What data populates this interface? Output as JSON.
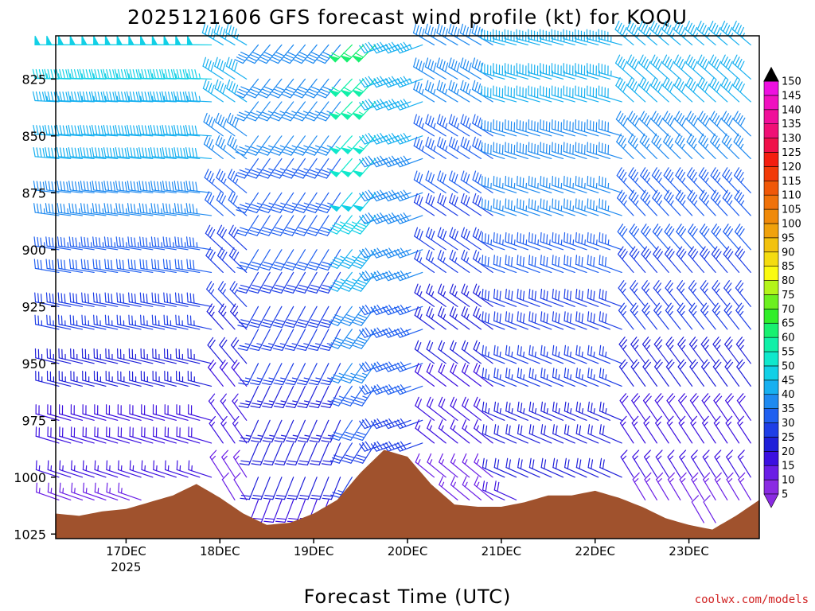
{
  "chart_data": {
    "type": "wind_barb_time_height",
    "title": "2025121606 GFS forecast wind profile (kt) for KOQU",
    "xlabel": "Forecast Time (UTC)",
    "ylabel": "",
    "credit": "coolwx.com/models",
    "y_axis": {
      "units": "hPa",
      "inverted": true,
      "range": [
        806,
        1027
      ],
      "ticks": [
        825,
        850,
        875,
        900,
        925,
        950,
        975,
        1000,
        1025
      ]
    },
    "x_axis": {
      "units": "hours since 2025-12-16 06Z",
      "range": [
        0,
        180
      ],
      "ticks": [
        {
          "hour": 18,
          "label": "17DEC",
          "sublabel": "2025"
        },
        {
          "hour": 42,
          "label": "18DEC"
        },
        {
          "hour": 66,
          "label": "19DEC"
        },
        {
          "hour": 90,
          "label": "20DEC"
        },
        {
          "hour": 114,
          "label": "21DEC"
        },
        {
          "hour": 138,
          "label": "22DEC"
        },
        {
          "hour": 162,
          "label": "23DEC"
        }
      ]
    },
    "colorbar": {
      "label_units": "kt",
      "levels": [
        5,
        10,
        15,
        20,
        25,
        30,
        35,
        40,
        45,
        50,
        55,
        60,
        65,
        70,
        75,
        80,
        85,
        90,
        95,
        100,
        105,
        110,
        115,
        120,
        125,
        130,
        135,
        140,
        145,
        150
      ],
      "colors": [
        "#8a2be2",
        "#6a1ee6",
        "#3c10e0",
        "#1f1fd9",
        "#1e3ee6",
        "#2060f0",
        "#1f8af0",
        "#17b0f0",
        "#12d0e6",
        "#10e8cc",
        "#10f0a8",
        "#18f070",
        "#30ee2a",
        "#6cf020",
        "#b4f41a",
        "#fafa10",
        "#f4dc10",
        "#f2c20e",
        "#f0a20c",
        "#f08a0a",
        "#f0720a",
        "#f05808",
        "#f23a08",
        "#f41e10",
        "#f0104a",
        "#f01076",
        "#f0109a",
        "#f010c0",
        "#ee10e0",
        "#000000"
      ]
    },
    "pressure_levels": [
      810,
      825,
      835,
      850,
      860,
      875,
      885,
      900,
      910,
      925,
      935,
      950,
      960,
      975,
      985,
      1000,
      1010,
      1020
    ],
    "barb_times": [
      0,
      3,
      6,
      9,
      12,
      15,
      18,
      21,
      24,
      27,
      30,
      33,
      36,
      39,
      42,
      45,
      48,
      51,
      54,
      57,
      60,
      63,
      66,
      69,
      72,
      75,
      78,
      81,
      84,
      87,
      90,
      93,
      96,
      99,
      102,
      105,
      108,
      111,
      114,
      117,
      120,
      123,
      126,
      129,
      132,
      135,
      138,
      141,
      144,
      147,
      150,
      153,
      156,
      159,
      162,
      165,
      168,
      171,
      174,
      177
    ],
    "wind_regimes": [
      {
        "hours": [
          0,
          40
        ],
        "direction_deg_sfc": 290,
        "direction_deg_top": 270,
        "speed_kt_sfc": 12,
        "speed_kt_top": 50
      },
      {
        "hours": [
          40,
          50
        ],
        "direction_deg_sfc": 330,
        "direction_deg_top": 300,
        "speed_kt_sfc": 10,
        "speed_kt_top": 45
      },
      {
        "hours": [
          50,
          73
        ],
        "direction_deg_sfc": 200,
        "direction_deg_top": 220,
        "speed_kt_sfc": 18,
        "speed_kt_top": 40
      },
      {
        "hours": [
          73,
          82
        ],
        "direction_deg_sfc": 210,
        "direction_deg_top": 225,
        "speed_kt_sfc": 22,
        "speed_kt_top": 62
      },
      {
        "hours": [
          82,
          96
        ],
        "direction_deg_sfc": 250,
        "direction_deg_top": 250,
        "speed_kt_sfc": 25,
        "speed_kt_top": 45
      },
      {
        "hours": [
          96,
          112
        ],
        "direction_deg_sfc": 310,
        "direction_deg_top": 300,
        "speed_kt_sfc": 12,
        "speed_kt_top": 40
      },
      {
        "hours": [
          112,
          146
        ],
        "direction_deg_sfc": 295,
        "direction_deg_top": 285,
        "speed_kt_sfc": 18,
        "speed_kt_top": 45
      },
      {
        "hours": [
          146,
          180
        ],
        "direction_deg_sfc": 330,
        "direction_deg_top": 310,
        "speed_kt_sfc": 12,
        "speed_kt_top": 45
      }
    ],
    "surface_pressure": {
      "hours": [
        0,
        6,
        12,
        18,
        24,
        30,
        36,
        42,
        48,
        54,
        60,
        66,
        72,
        78,
        84,
        90,
        96,
        102,
        108,
        114,
        120,
        126,
        132,
        138,
        144,
        150,
        156,
        162,
        168,
        174,
        180
      ],
      "hpa": [
        1016,
        1017,
        1015,
        1014,
        1011,
        1008,
        1003,
        1009,
        1016,
        1021,
        1020,
        1016,
        1010,
        998,
        988,
        991,
        1003,
        1012,
        1013,
        1013,
        1011,
        1008,
        1008,
        1006,
        1009,
        1013,
        1018,
        1021,
        1023,
        1017,
        1010
      ]
    }
  }
}
